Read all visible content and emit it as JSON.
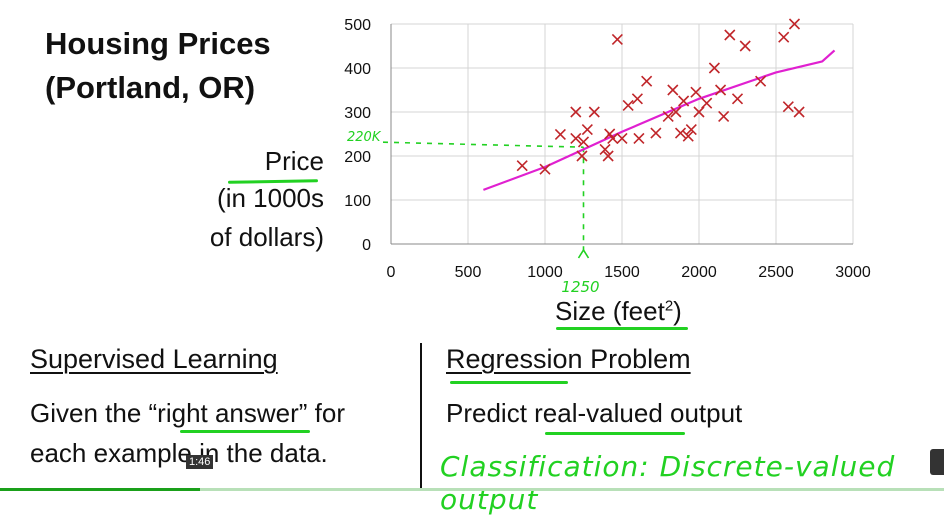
{
  "slide": {
    "title_line1": "Housing Prices",
    "title_line2": "(Portland, OR)",
    "ylabel_line1": "Price",
    "ylabel_line2": "(in 1000s",
    "ylabel_line3": "of dollars)",
    "xlabel": "Size (feet",
    "xlabel_sup": "2",
    "xlabel_close": ")",
    "left_heading": "Supervised Learning",
    "left_body_line1": "Given the “right answer” for",
    "left_body_line2": "each example in the data.",
    "right_heading": "Regression Problem",
    "right_body": "Predict real-valued output",
    "handwritten_note": "Classification: Discrete-valued output",
    "annotation_x": "1250",
    "annotation_y": "220K",
    "video_time": "1:46"
  },
  "colors": {
    "points": "#c0262a",
    "fit_line": "#e020d0",
    "annotation": "#22d122"
  },
  "chart_data": {
    "type": "scatter",
    "xlim": [
      0,
      3000
    ],
    "ylim": [
      0,
      500
    ],
    "xticks": [
      "0",
      "500",
      "1000",
      "1500",
      "2000",
      "2500",
      "3000"
    ],
    "yticks": [
      "0",
      "100",
      "200",
      "300",
      "400",
      "500"
    ],
    "grid": true,
    "points": [
      [
        852,
        178
      ],
      [
        1000,
        170
      ],
      [
        1100,
        249
      ],
      [
        1200,
        300
      ],
      [
        1200,
        240
      ],
      [
        1250,
        232
      ],
      [
        1240,
        200
      ],
      [
        1275,
        260
      ],
      [
        1320,
        300
      ],
      [
        1390,
        215
      ],
      [
        1410,
        200
      ],
      [
        1420,
        250
      ],
      [
        1440,
        240
      ],
      [
        1470,
        465
      ],
      [
        1500,
        240
      ],
      [
        1540,
        315
      ],
      [
        1600,
        330
      ],
      [
        1610,
        240
      ],
      [
        1660,
        370
      ],
      [
        1720,
        252
      ],
      [
        1800,
        290
      ],
      [
        1830,
        350
      ],
      [
        1850,
        300
      ],
      [
        1880,
        252
      ],
      [
        1900,
        325
      ],
      [
        1930,
        245
      ],
      [
        1950,
        260
      ],
      [
        1980,
        345
      ],
      [
        2000,
        300
      ],
      [
        2050,
        320
      ],
      [
        2100,
        400
      ],
      [
        2140,
        350
      ],
      [
        2160,
        290
      ],
      [
        2200,
        475
      ],
      [
        2250,
        330
      ],
      [
        2300,
        450
      ],
      [
        2400,
        370
      ],
      [
        2550,
        470
      ],
      [
        2580,
        312
      ],
      [
        2620,
        500
      ],
      [
        2650,
        300
      ]
    ],
    "fit_line": [
      [
        600,
        123
      ],
      [
        1000,
        175
      ],
      [
        1500,
        255
      ],
      [
        2000,
        330
      ],
      [
        2500,
        390
      ],
      [
        2800,
        415
      ],
      [
        2880,
        440
      ]
    ],
    "annotation": {
      "x": 1250,
      "y": 220
    }
  }
}
